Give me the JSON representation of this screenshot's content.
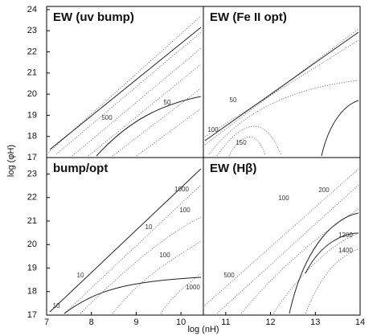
{
  "chart_data": [
    {
      "type": "contour",
      "title": "EW (uv bump)",
      "xlim": [
        7,
        10.5
      ],
      "ylim": [
        17,
        24.15
      ],
      "yticks": [
        17,
        18,
        19,
        20,
        21,
        22,
        23,
        24
      ],
      "ylabel": "log (φH)",
      "contour_labels": [
        500,
        50
      ]
    },
    {
      "type": "contour",
      "title": "EW (Fe II opt)",
      "xlim": [
        10.5,
        14
      ],
      "ylim": [
        17,
        24.15
      ],
      "contour_labels": [
        50,
        100,
        150
      ]
    },
    {
      "type": "contour",
      "title": "bump/opt",
      "xlim": [
        7,
        10.5
      ],
      "ylim": [
        17,
        23.7
      ],
      "xticks": [
        7,
        8,
        9,
        10
      ],
      "yticks": [
        17,
        18,
        19,
        20,
        21,
        22,
        23
      ],
      "xlabel": "log (nH)",
      "contour_labels": [
        1000,
        100,
        10,
        100,
        10,
        1000,
        10
      ]
    },
    {
      "type": "contour",
      "title": "EW (Hβ)",
      "xlim": [
        10.5,
        14
      ],
      "ylim": [
        17,
        23.7
      ],
      "xticks": [
        11,
        12,
        13,
        14
      ],
      "contour_labels": [
        200,
        100,
        500,
        1200,
        1400
      ]
    }
  ]
}
